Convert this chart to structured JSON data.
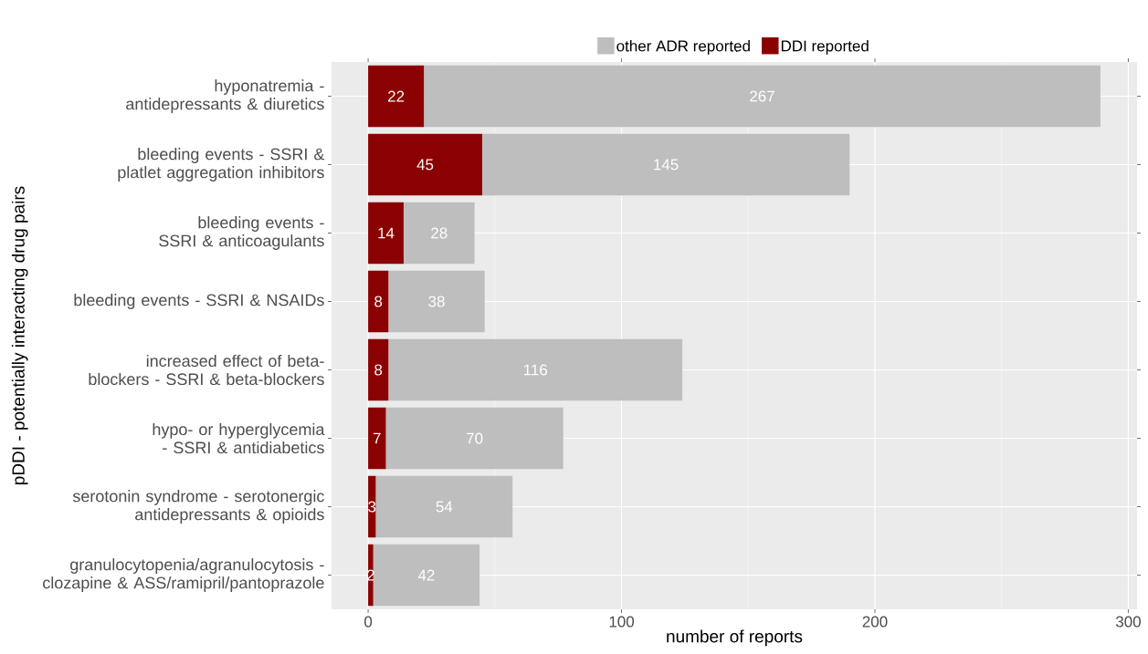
{
  "chart_data": {
    "type": "bar",
    "orientation": "horizontal",
    "stacked": true,
    "xlabel": "number of reports",
    "ylabel": "pDDI - potentially interacting drug pairs",
    "categories": [
      "hyponatremia - antidepressants & diuretics",
      "bleeding events - SSRI & platlet aggregation inhibitors",
      "bleeding events - SSRI & anticoagulants",
      "bleeding events - SSRI & NSAIDs",
      "increased effect of beta-blockers - SSRI & beta-blockers",
      "hypo- or hyperglycemia - SSRI & antidiabetics",
      "serotonin syndrome - serotonergic antidepressants & opioids",
      "granulocytopenia/agranulocytosis - clozapine & ASS/ramipril/pantoprazole"
    ],
    "series": [
      {
        "name": "DDI reported",
        "color": "#8b0000",
        "values": [
          22,
          45,
          14,
          8,
          8,
          7,
          3,
          2
        ]
      },
      {
        "name": "other ADR reported",
        "color": "#bebebe",
        "values": [
          267,
          145,
          28,
          38,
          116,
          70,
          54,
          42
        ]
      }
    ],
    "xlim": [
      -14.45,
      303.45
    ],
    "xticks": [
      0,
      100,
      200,
      300
    ],
    "grid": true,
    "legend": "top",
    "data_labels": true
  }
}
